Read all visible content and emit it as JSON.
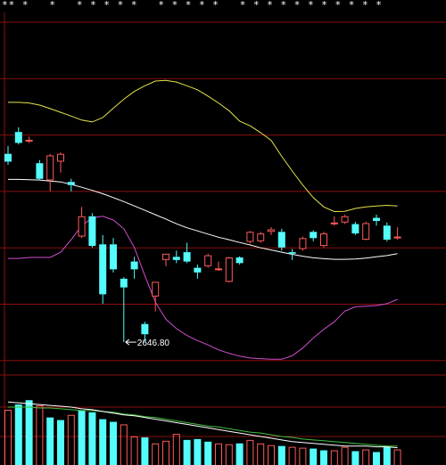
{
  "header": {
    "masked_text": "** *   *   * * * * *   * * * * *   * * * * * * * * * * *"
  },
  "colors": {
    "background": "#000000",
    "grid": "#8a0f0f",
    "up": "#ff5a5a",
    "down": "#54fcfc",
    "ma_white": "#ffffff",
    "boll_upper": "#e6e34a",
    "boll_lower": "#d04fd0",
    "vol_ma_green": "#3fbf3f",
    "label": "#ffffff"
  },
  "chart_data": [
    {
      "type": "candlestick",
      "title": "",
      "ylim": [
        2550,
        3680
      ],
      "grid": true,
      "annotations": [
        {
          "text": "2646.80",
          "x_index": 11,
          "y": 2646.8
        }
      ],
      "candles": [
        {
          "o": 3250,
          "h": 3275,
          "l": 3215,
          "c": 3225
        },
        {
          "o": 3320,
          "h": 3335,
          "l": 3280,
          "c": 3285
        },
        {
          "o": 3295,
          "h": 3305,
          "l": 3285,
          "c": 3295
        },
        {
          "o": 3220,
          "h": 3230,
          "l": 3165,
          "c": 3170
        },
        {
          "o": 3165,
          "h": 3250,
          "l": 3130,
          "c": 3245
        },
        {
          "o": 3225,
          "h": 3255,
          "l": 3190,
          "c": 3250
        },
        {
          "o": 3160,
          "h": 3170,
          "l": 3130,
          "c": 3150
        },
        {
          "o": 2985,
          "h": 3080,
          "l": 2980,
          "c": 3050
        },
        {
          "o": 3050,
          "h": 3060,
          "l": 2950,
          "c": 2955
        },
        {
          "o": 2960,
          "h": 2990,
          "l": 2770,
          "c": 2800
        },
        {
          "o": 2960,
          "h": 2980,
          "l": 2870,
          "c": 2880
        },
        {
          "o": 2850,
          "h": 2855,
          "l": 2647,
          "c": 2822
        },
        {
          "o": 2905,
          "h": 2920,
          "l": 2850,
          "c": 2880
        },
        {
          "o": 2705,
          "h": 2712,
          "l": 2646.8,
          "c": 2672
        },
        {
          "o": 2793,
          "h": 2840,
          "l": 2745,
          "c": 2840
        },
        {
          "o": 2910,
          "h": 2930,
          "l": 2890,
          "c": 2930
        },
        {
          "o": 2920,
          "h": 2940,
          "l": 2900,
          "c": 2910
        },
        {
          "o": 2935,
          "h": 2965,
          "l": 2900,
          "c": 2905
        },
        {
          "o": 2885,
          "h": 2895,
          "l": 2850,
          "c": 2870
        },
        {
          "o": 2890,
          "h": 2930,
          "l": 2885,
          "c": 2925
        },
        {
          "o": 2880,
          "h": 2905,
          "l": 2875,
          "c": 2883
        },
        {
          "o": 2840,
          "h": 2920,
          "l": 2838,
          "c": 2918
        },
        {
          "o": 2918,
          "h": 2922,
          "l": 2895,
          "c": 2900
        },
        {
          "o": 2968,
          "h": 3003,
          "l": 2963,
          "c": 3000
        },
        {
          "o": 2970,
          "h": 3000,
          "l": 2965,
          "c": 2995
        },
        {
          "o": 3000,
          "h": 3015,
          "l": 2990,
          "c": 3008
        },
        {
          "o": 3000,
          "h": 3010,
          "l": 2940,
          "c": 2950
        },
        {
          "o": 2935,
          "h": 2945,
          "l": 2910,
          "c": 2930
        },
        {
          "o": 2945,
          "h": 2985,
          "l": 2940,
          "c": 2980
        },
        {
          "o": 3000,
          "h": 3005,
          "l": 2970,
          "c": 2980
        },
        {
          "o": 2955,
          "h": 3000,
          "l": 2950,
          "c": 2995
        },
        {
          "o": 3025,
          "h": 3050,
          "l": 3020,
          "c": 3030
        },
        {
          "o": 3030,
          "h": 3055,
          "l": 3025,
          "c": 3050
        },
        {
          "o": 3025,
          "h": 3032,
          "l": 2990,
          "c": 2995
        },
        {
          "o": 2975,
          "h": 3033,
          "l": 2973,
          "c": 3028
        },
        {
          "o": 3045,
          "h": 3055,
          "l": 3020,
          "c": 3035
        },
        {
          "o": 3020,
          "h": 3030,
          "l": 2970,
          "c": 2975
        },
        {
          "o": 2982,
          "h": 3015,
          "l": 2975,
          "c": 2985
        }
      ],
      "ma_white": [
        3168,
        3168,
        3167,
        3166,
        3163,
        3160,
        3152,
        3143,
        3133,
        3122,
        3110,
        3097,
        3083,
        3069,
        3055,
        3041,
        3026,
        3013,
        3003,
        2993,
        2983,
        2975,
        2966,
        2958,
        2949,
        2942,
        2935,
        2928,
        2922,
        2917,
        2914,
        2912,
        2912,
        2913,
        2916,
        2920,
        2924,
        2930
      ],
      "boll_upper": [
        3415,
        3415,
        3413,
        3406,
        3395,
        3383,
        3371,
        3358,
        3352,
        3366,
        3396,
        3425,
        3450,
        3468,
        3483,
        3485,
        3480,
        3468,
        3455,
        3435,
        3413,
        3388,
        3355,
        3340,
        3318,
        3293,
        3242,
        3195,
        3150,
        3110,
        3080,
        3065,
        3066,
        3075,
        3080,
        3083,
        3085,
        3083
      ],
      "boll_lower": [
        2915,
        2915,
        2918,
        2918,
        2918,
        2935,
        2975,
        3020,
        3045,
        3050,
        3038,
        3010,
        2950,
        2860,
        2775,
        2720,
        2690,
        2668,
        2652,
        2638,
        2622,
        2611,
        2602,
        2596,
        2594,
        2592,
        2592,
        2603,
        2628,
        2660,
        2688,
        2712,
        2746,
        2760,
        2762,
        2764,
        2770,
        2784
      ]
    },
    {
      "type": "bar",
      "title": "",
      "ylim": [
        0,
        100
      ],
      "values": [
        64,
        70,
        75,
        69,
        55,
        52,
        58,
        63,
        61,
        53,
        50,
        47,
        33,
        32,
        25,
        28,
        36,
        29,
        30,
        27,
        25,
        24,
        25,
        29,
        25,
        23,
        22,
        21,
        20,
        19,
        17,
        17,
        21,
        16,
        18,
        15,
        21,
        18
      ],
      "colors": [
        "up",
        "down",
        "down",
        "up",
        "down",
        "down",
        "up",
        "down",
        "down",
        "down",
        "down",
        "up",
        "up",
        "down",
        "up",
        "up",
        "up",
        "down",
        "down",
        "down",
        "up",
        "up",
        "down",
        "up",
        "up",
        "up",
        "down",
        "up",
        "up",
        "down",
        "down",
        "up",
        "up",
        "down",
        "up",
        "down",
        "down",
        "up"
      ],
      "ma_white": [
        73,
        72,
        71,
        70,
        69,
        68,
        67,
        65,
        64,
        62,
        60,
        58,
        57,
        55,
        53,
        51,
        49,
        47,
        45,
        43,
        41,
        39,
        37,
        35,
        33,
        31,
        29,
        27,
        26,
        25,
        24,
        23,
        22,
        22,
        22,
        21,
        21,
        20
      ],
      "ma_green": [
        67,
        67,
        67,
        66,
        66,
        65,
        64,
        63,
        63,
        62,
        61,
        59,
        58,
        56,
        55,
        53,
        51,
        49,
        47,
        45,
        44,
        42,
        40,
        38,
        37,
        35,
        33,
        32,
        30,
        29,
        28,
        27,
        26,
        25,
        24,
        23,
        22,
        22
      ]
    }
  ]
}
